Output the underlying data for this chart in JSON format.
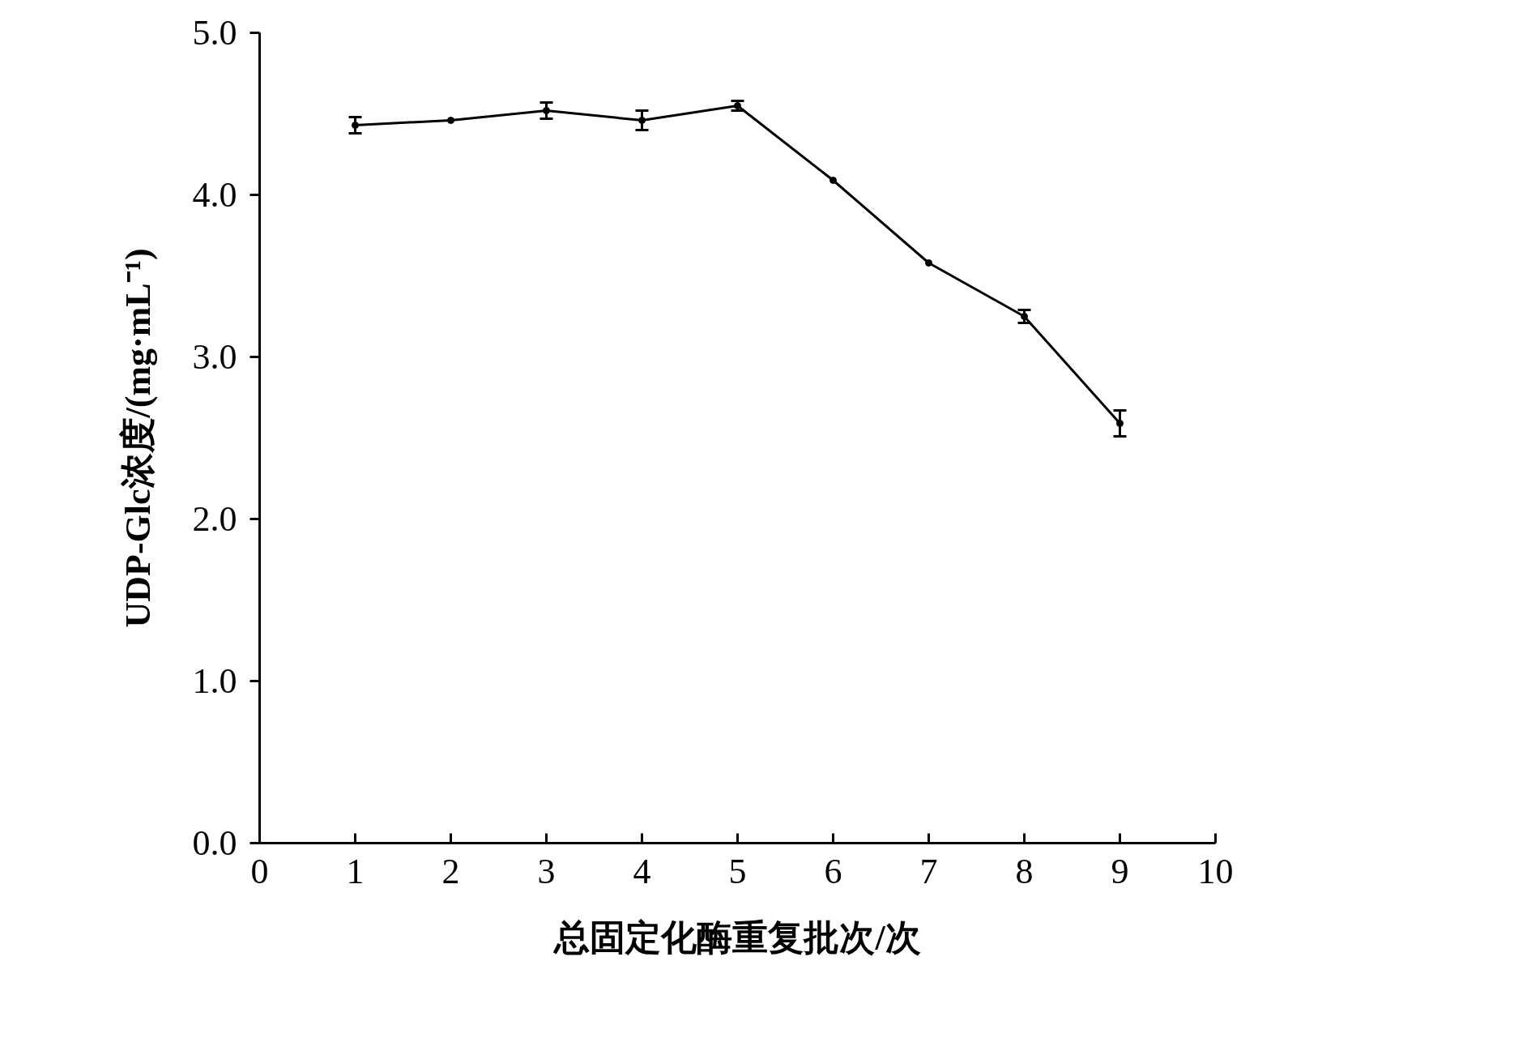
{
  "chart_data": {
    "type": "line",
    "xlabel": "总固定化酶重复批次/次",
    "ylabel": "UDP-Glc浓度/(mg·mL⁻¹)",
    "x": [
      1,
      2,
      3,
      4,
      5,
      6,
      7,
      8,
      9
    ],
    "series": [
      {
        "color": "#000000",
        "values": [
          4.43,
          4.46,
          4.52,
          4.46,
          4.55,
          4.09,
          3.58,
          3.25,
          2.59
        ],
        "errors": [
          0.05,
          null,
          0.05,
          0.06,
          0.03,
          null,
          null,
          0.04,
          0.08
        ]
      }
    ],
    "xlim": [
      0,
      10
    ],
    "xticks": [
      0,
      1,
      2,
      3,
      4,
      5,
      6,
      7,
      8,
      9,
      10
    ],
    "ylim": [
      0,
      5
    ],
    "yticks": [
      {
        "value": 0,
        "label": "0.0"
      },
      {
        "value": 1,
        "label": "1.0"
      },
      {
        "value": 2,
        "label": "2.0"
      },
      {
        "value": 3,
        "label": "3.0"
      },
      {
        "value": 4,
        "label": "4.0"
      },
      {
        "value": 5,
        "label": "5.0"
      }
    ],
    "grid": false,
    "marker": "circle",
    "line_style": "solid"
  }
}
